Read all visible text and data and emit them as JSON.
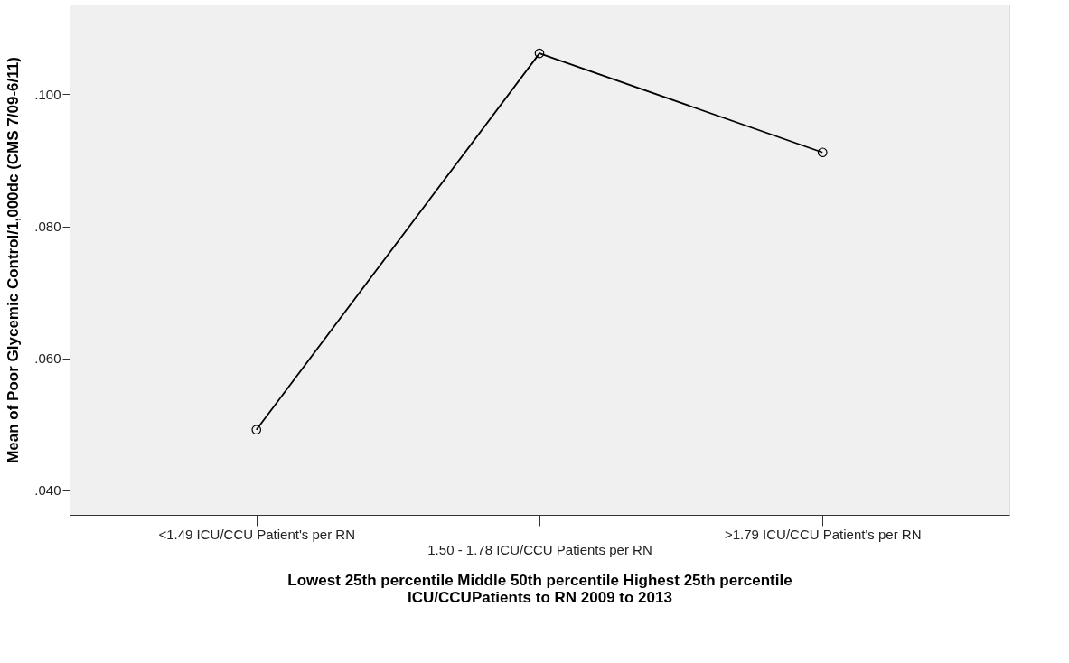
{
  "chart_data": {
    "type": "line",
    "xlabel": "Lowest 25th percentile  Middle 50th percentile  Highest 25th percentile\nICU/CCUPatients to RN 2009 to 2013",
    "ylabel": "Mean of Poor Glycemic Control/1,000dc (CMS 7/09-6/11)",
    "categories": [
      "<1.49 ICU/CCU Patient's per RN",
      "1.50 - 1.78 ICU/CCU Patients per RN",
      ">1.79 ICU/CCU Patient's per RN"
    ],
    "series": [
      {
        "color": "#000000",
        "values": [
          0.0492,
          0.1062,
          0.0912
        ]
      }
    ],
    "ylim": [
      0.0363,
      0.1136
    ],
    "yticks": [
      {
        "value": 0.04,
        "label": ".040"
      },
      {
        "value": 0.06,
        "label": ".060"
      },
      {
        "value": 0.08,
        "label": ".080"
      },
      {
        "value": 0.1,
        "label": ".100"
      }
    ],
    "grid": false,
    "marker": "circle",
    "line_style": "solid"
  }
}
